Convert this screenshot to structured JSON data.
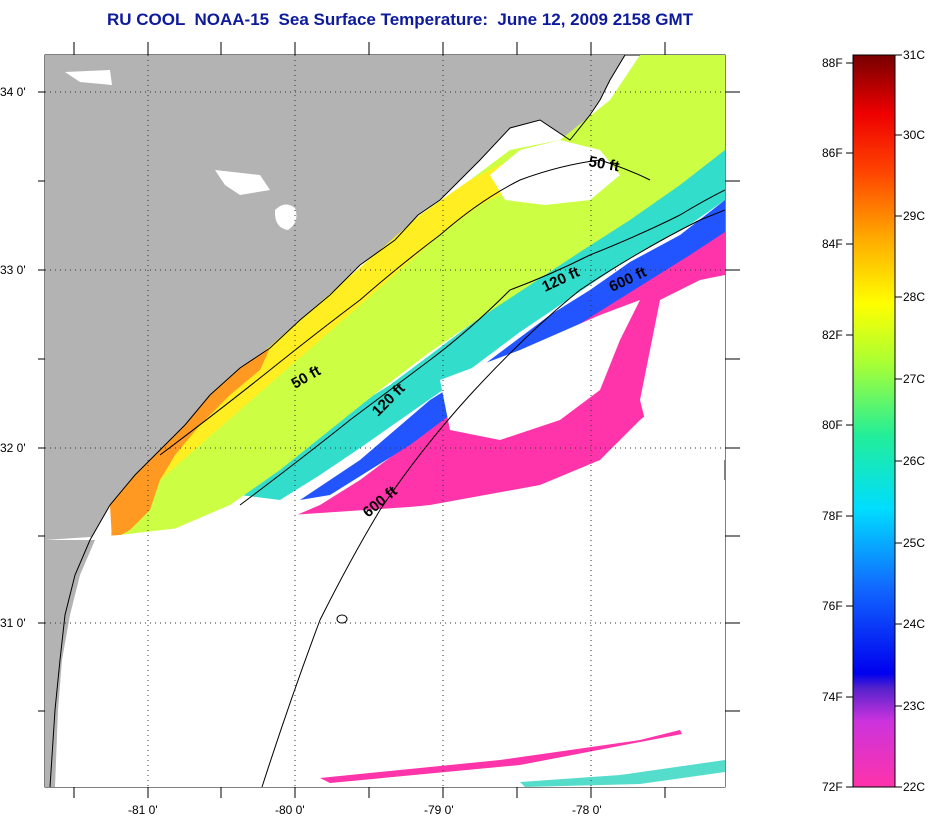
{
  "title": "RU COOL  NOAA-15  Sea Surface Temperature:  June 12, 2009 2158 GMT",
  "lat_labels": [
    "34 0'",
    "33 0'",
    "32 0'",
    "31 0'"
  ],
  "lon_labels": [
    "-81 0'",
    "-80 0'",
    "-79 0'",
    "-78 0'"
  ],
  "contour_labels": [
    "50 ft",
    "120 ft",
    "600 ft",
    "50 ft",
    "120 ft",
    "600 ft"
  ],
  "colorbar": {
    "fahrenheit_labels": [
      "88F",
      "86F",
      "84F",
      "82F",
      "80F",
      "78F",
      "76F",
      "74F",
      "72F"
    ],
    "celsius_labels": [
      "31C",
      "30C",
      "29C",
      "28C",
      "27C",
      "26C",
      "25C",
      "24C",
      "23C",
      "22C"
    ],
    "range_c": [
      22,
      31
    ],
    "range_f": [
      72,
      88
    ]
  },
  "colors": {
    "title": "#0d1a9c",
    "land": "#b3b3b3",
    "no_data": "#ffffff",
    "cold": "#ff33aa",
    "warm": "#880000"
  }
}
